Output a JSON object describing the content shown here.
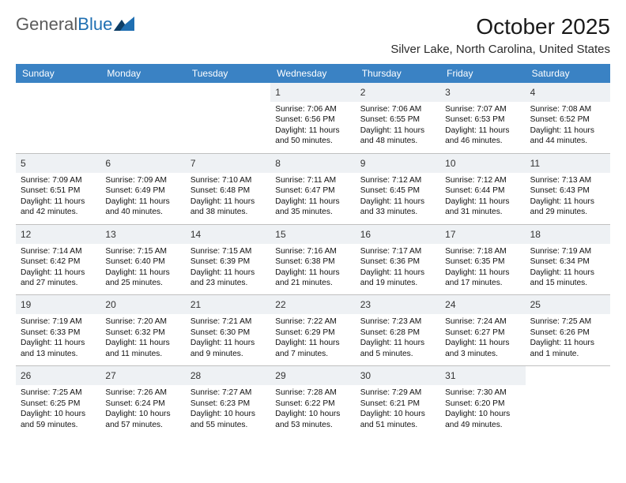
{
  "logo": {
    "general": "General",
    "blue": "Blue"
  },
  "title": "October 2025",
  "location": "Silver Lake, North Carolina, United States",
  "header_bg": "#3a82c4",
  "weekdays": [
    "Sunday",
    "Monday",
    "Tuesday",
    "Wednesday",
    "Thursday",
    "Friday",
    "Saturday"
  ],
  "weeks": [
    [
      {
        "empty": true
      },
      {
        "empty": true
      },
      {
        "empty": true
      },
      {
        "num": "1",
        "sunrise": "Sunrise: 7:06 AM",
        "sunset": "Sunset: 6:56 PM",
        "daylight": "Daylight: 11 hours and 50 minutes."
      },
      {
        "num": "2",
        "sunrise": "Sunrise: 7:06 AM",
        "sunset": "Sunset: 6:55 PM",
        "daylight": "Daylight: 11 hours and 48 minutes."
      },
      {
        "num": "3",
        "sunrise": "Sunrise: 7:07 AM",
        "sunset": "Sunset: 6:53 PM",
        "daylight": "Daylight: 11 hours and 46 minutes."
      },
      {
        "num": "4",
        "sunrise": "Sunrise: 7:08 AM",
        "sunset": "Sunset: 6:52 PM",
        "daylight": "Daylight: 11 hours and 44 minutes."
      }
    ],
    [
      {
        "num": "5",
        "sunrise": "Sunrise: 7:09 AM",
        "sunset": "Sunset: 6:51 PM",
        "daylight": "Daylight: 11 hours and 42 minutes."
      },
      {
        "num": "6",
        "sunrise": "Sunrise: 7:09 AM",
        "sunset": "Sunset: 6:49 PM",
        "daylight": "Daylight: 11 hours and 40 minutes."
      },
      {
        "num": "7",
        "sunrise": "Sunrise: 7:10 AM",
        "sunset": "Sunset: 6:48 PM",
        "daylight": "Daylight: 11 hours and 38 minutes."
      },
      {
        "num": "8",
        "sunrise": "Sunrise: 7:11 AM",
        "sunset": "Sunset: 6:47 PM",
        "daylight": "Daylight: 11 hours and 35 minutes."
      },
      {
        "num": "9",
        "sunrise": "Sunrise: 7:12 AM",
        "sunset": "Sunset: 6:45 PM",
        "daylight": "Daylight: 11 hours and 33 minutes."
      },
      {
        "num": "10",
        "sunrise": "Sunrise: 7:12 AM",
        "sunset": "Sunset: 6:44 PM",
        "daylight": "Daylight: 11 hours and 31 minutes."
      },
      {
        "num": "11",
        "sunrise": "Sunrise: 7:13 AM",
        "sunset": "Sunset: 6:43 PM",
        "daylight": "Daylight: 11 hours and 29 minutes."
      }
    ],
    [
      {
        "num": "12",
        "sunrise": "Sunrise: 7:14 AM",
        "sunset": "Sunset: 6:42 PM",
        "daylight": "Daylight: 11 hours and 27 minutes."
      },
      {
        "num": "13",
        "sunrise": "Sunrise: 7:15 AM",
        "sunset": "Sunset: 6:40 PM",
        "daylight": "Daylight: 11 hours and 25 minutes."
      },
      {
        "num": "14",
        "sunrise": "Sunrise: 7:15 AM",
        "sunset": "Sunset: 6:39 PM",
        "daylight": "Daylight: 11 hours and 23 minutes."
      },
      {
        "num": "15",
        "sunrise": "Sunrise: 7:16 AM",
        "sunset": "Sunset: 6:38 PM",
        "daylight": "Daylight: 11 hours and 21 minutes."
      },
      {
        "num": "16",
        "sunrise": "Sunrise: 7:17 AM",
        "sunset": "Sunset: 6:36 PM",
        "daylight": "Daylight: 11 hours and 19 minutes."
      },
      {
        "num": "17",
        "sunrise": "Sunrise: 7:18 AM",
        "sunset": "Sunset: 6:35 PM",
        "daylight": "Daylight: 11 hours and 17 minutes."
      },
      {
        "num": "18",
        "sunrise": "Sunrise: 7:19 AM",
        "sunset": "Sunset: 6:34 PM",
        "daylight": "Daylight: 11 hours and 15 minutes."
      }
    ],
    [
      {
        "num": "19",
        "sunrise": "Sunrise: 7:19 AM",
        "sunset": "Sunset: 6:33 PM",
        "daylight": "Daylight: 11 hours and 13 minutes."
      },
      {
        "num": "20",
        "sunrise": "Sunrise: 7:20 AM",
        "sunset": "Sunset: 6:32 PM",
        "daylight": "Daylight: 11 hours and 11 minutes."
      },
      {
        "num": "21",
        "sunrise": "Sunrise: 7:21 AM",
        "sunset": "Sunset: 6:30 PM",
        "daylight": "Daylight: 11 hours and 9 minutes."
      },
      {
        "num": "22",
        "sunrise": "Sunrise: 7:22 AM",
        "sunset": "Sunset: 6:29 PM",
        "daylight": "Daylight: 11 hours and 7 minutes."
      },
      {
        "num": "23",
        "sunrise": "Sunrise: 7:23 AM",
        "sunset": "Sunset: 6:28 PM",
        "daylight": "Daylight: 11 hours and 5 minutes."
      },
      {
        "num": "24",
        "sunrise": "Sunrise: 7:24 AM",
        "sunset": "Sunset: 6:27 PM",
        "daylight": "Daylight: 11 hours and 3 minutes."
      },
      {
        "num": "25",
        "sunrise": "Sunrise: 7:25 AM",
        "sunset": "Sunset: 6:26 PM",
        "daylight": "Daylight: 11 hours and 1 minute."
      }
    ],
    [
      {
        "num": "26",
        "sunrise": "Sunrise: 7:25 AM",
        "sunset": "Sunset: 6:25 PM",
        "daylight": "Daylight: 10 hours and 59 minutes."
      },
      {
        "num": "27",
        "sunrise": "Sunrise: 7:26 AM",
        "sunset": "Sunset: 6:24 PM",
        "daylight": "Daylight: 10 hours and 57 minutes."
      },
      {
        "num": "28",
        "sunrise": "Sunrise: 7:27 AM",
        "sunset": "Sunset: 6:23 PM",
        "daylight": "Daylight: 10 hours and 55 minutes."
      },
      {
        "num": "29",
        "sunrise": "Sunrise: 7:28 AM",
        "sunset": "Sunset: 6:22 PM",
        "daylight": "Daylight: 10 hours and 53 minutes."
      },
      {
        "num": "30",
        "sunrise": "Sunrise: 7:29 AM",
        "sunset": "Sunset: 6:21 PM",
        "daylight": "Daylight: 10 hours and 51 minutes."
      },
      {
        "num": "31",
        "sunrise": "Sunrise: 7:30 AM",
        "sunset": "Sunset: 6:20 PM",
        "daylight": "Daylight: 10 hours and 49 minutes."
      },
      {
        "empty": true
      }
    ]
  ]
}
